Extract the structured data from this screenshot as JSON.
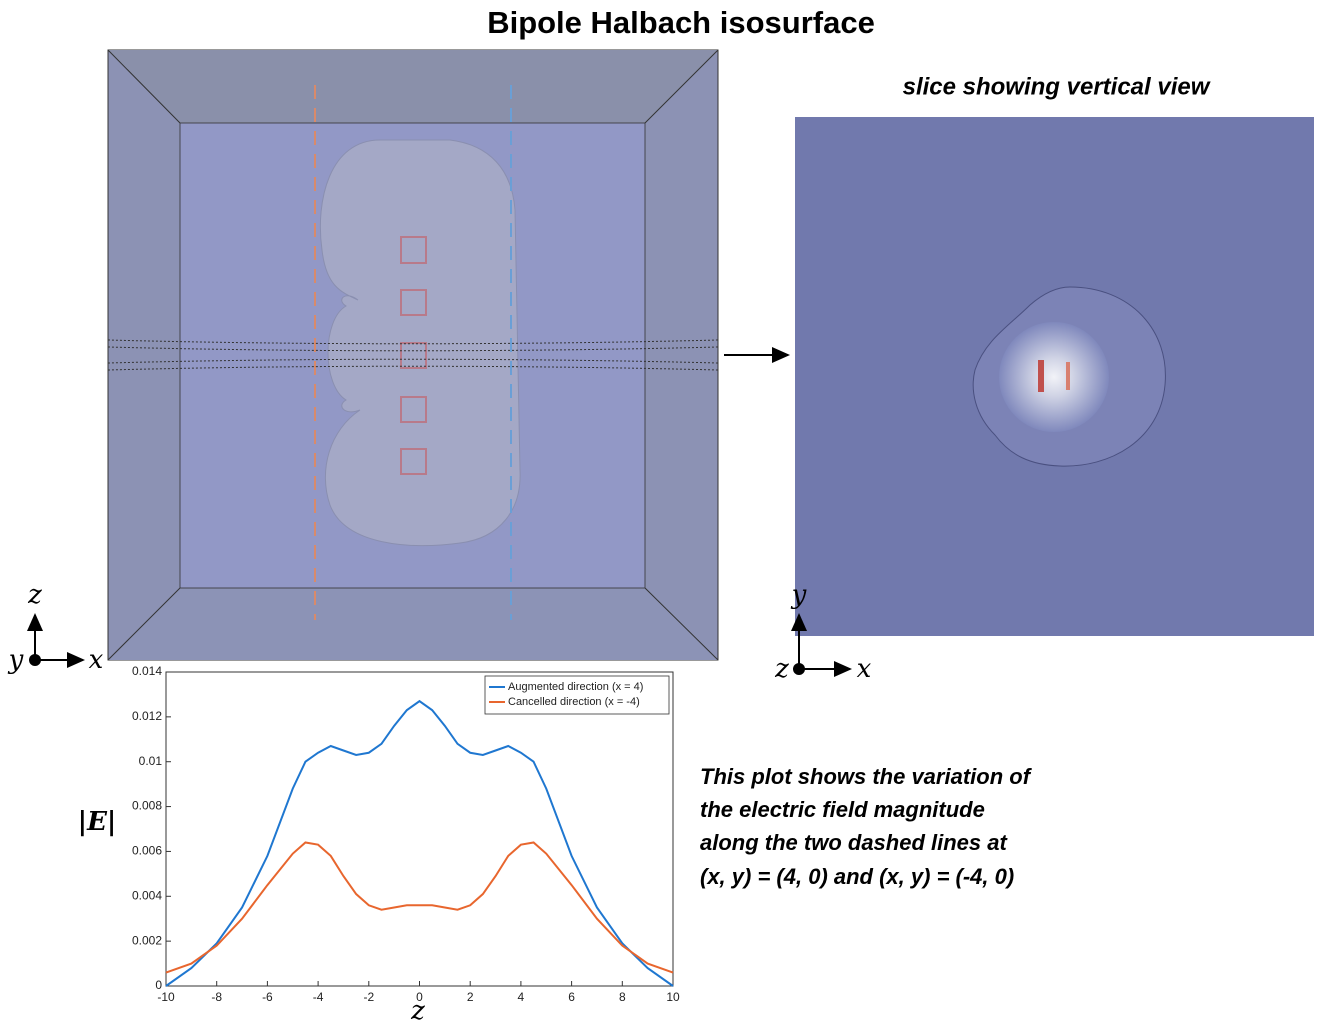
{
  "title": "Bipole Halbach isosurface",
  "slice_title": "slice showing vertical view",
  "left_axes": {
    "up": "z",
    "out": "y",
    "right": "x"
  },
  "right_axes": {
    "up": "y",
    "out": "z",
    "right": "x"
  },
  "caption": [
    "This plot shows the variation of",
    "the electric field magnitude",
    "along the two dashed lines at",
    "(x, y) = (4, 0) and (x, y) = (-4, 0)"
  ],
  "chart_data": {
    "type": "line",
    "xlabel": "z",
    "ylabel": "|E|",
    "x": [
      -10,
      -9,
      -8,
      -7,
      -6,
      -5,
      -4.5,
      -4,
      -3.5,
      -3,
      -2.5,
      -2,
      -1.5,
      -1,
      -0.5,
      0,
      0.5,
      1,
      1.5,
      2,
      2.5,
      3,
      3.5,
      4,
      4.5,
      5,
      6,
      7,
      8,
      9,
      10
    ],
    "series": [
      {
        "name": "Augmented direction (x = 4)",
        "color": "#1f77d0",
        "values": [
          0,
          0.0008,
          0.0019,
          0.0035,
          0.0058,
          0.0088,
          0.01,
          0.0104,
          0.0107,
          0.0105,
          0.0103,
          0.0104,
          0.0108,
          0.0116,
          0.0123,
          0.0127,
          0.0123,
          0.0116,
          0.0108,
          0.0104,
          0.0103,
          0.0105,
          0.0107,
          0.0104,
          0.01,
          0.0088,
          0.0058,
          0.0035,
          0.0019,
          0.0008,
          0
        ]
      },
      {
        "name": "Cancelled direction (x = -4)",
        "color": "#e8662e",
        "values": [
          0.0006,
          0.001,
          0.0018,
          0.003,
          0.0045,
          0.0059,
          0.0064,
          0.0063,
          0.0058,
          0.0049,
          0.0041,
          0.0036,
          0.0034,
          0.0035,
          0.0036,
          0.0036,
          0.0036,
          0.0035,
          0.0034,
          0.0036,
          0.0041,
          0.0049,
          0.0058,
          0.0063,
          0.0064,
          0.0059,
          0.0045,
          0.003,
          0.0018,
          0.001,
          0.0006
        ]
      }
    ],
    "xlim": [
      -10,
      10
    ],
    "xticks": [
      -10,
      -8,
      -6,
      -4,
      -2,
      0,
      2,
      4,
      6,
      8,
      10
    ],
    "ylim": [
      0,
      0.014
    ],
    "yticks": [
      0,
      0.002,
      0.004,
      0.006,
      0.008,
      0.01,
      0.012,
      0.014
    ],
    "grid": false,
    "legend": "upper right"
  }
}
